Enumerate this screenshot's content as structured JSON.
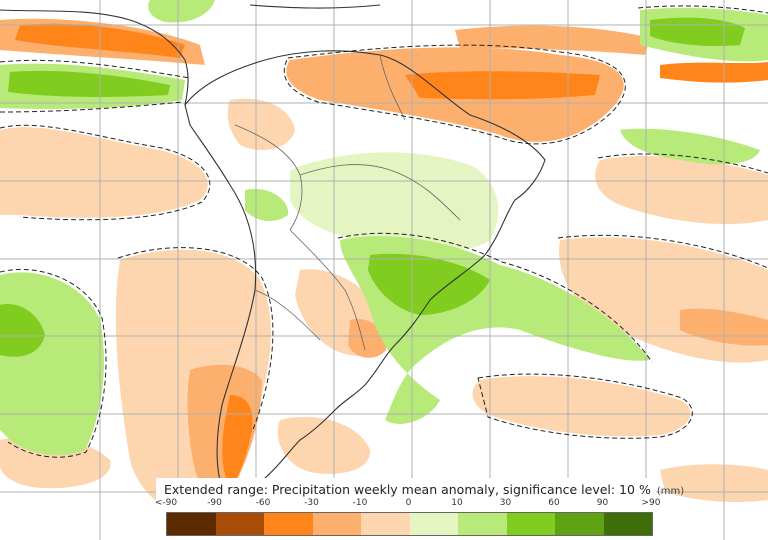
{
  "legend": {
    "title": "Extended range: Precipitation weekly mean anomaly, significance level: 10 %",
    "unit": "(mm)",
    "ticks": [
      "<-90",
      "-90",
      "-60",
      "-30",
      "-10",
      "0",
      "10",
      "30",
      "60",
      "90",
      ">90"
    ],
    "colors": [
      "#5c2a00",
      "#a84c0a",
      "#ff8419",
      "#fdb06e",
      "#fdd6b0",
      "#e5f5c2",
      "#b8ea7a",
      "#80cc1f",
      "#5fa213",
      "#3f6d0a"
    ]
  },
  "map": {
    "region": "South America",
    "land_color": "#ffffff",
    "grid_color": "#b0b0b0",
    "border_color": "#444444"
  }
}
